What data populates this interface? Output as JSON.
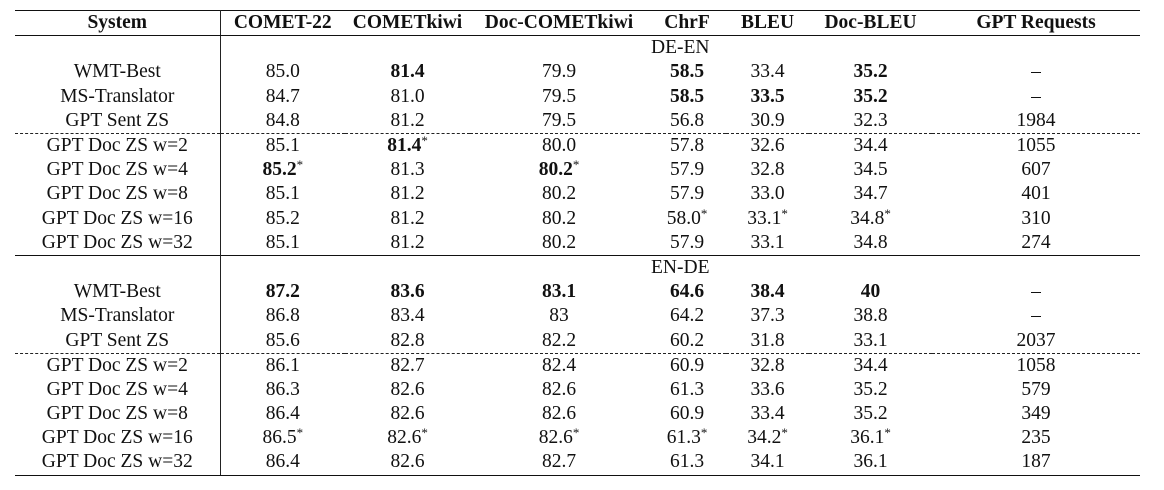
{
  "columns": [
    "System",
    "COMET-22",
    "COMETkiwi",
    "Doc-COMETkiwi",
    "ChrF",
    "BLEU",
    "Doc-BLEU",
    "GPT Requests"
  ],
  "sections": [
    {
      "label": "DE-EN",
      "rows": [
        {
          "system": "WMT-Best",
          "cells": [
            "85.0",
            "81.4",
            "79.9",
            "58.5",
            "33.4",
            "35.2",
            "–"
          ],
          "bold": [
            false,
            true,
            false,
            true,
            false,
            true,
            false
          ],
          "star": [
            false,
            false,
            false,
            false,
            false,
            false,
            false
          ],
          "dashed": false
        },
        {
          "system": "MS-Translator",
          "cells": [
            "84.7",
            "81.0",
            "79.5",
            "58.5",
            "33.5",
            "35.2",
            "–"
          ],
          "bold": [
            false,
            false,
            false,
            true,
            true,
            true,
            false
          ],
          "star": [
            false,
            false,
            false,
            false,
            false,
            false,
            false
          ],
          "dashed": false
        },
        {
          "system": "GPT Sent ZS",
          "cells": [
            "84.8",
            "81.2",
            "79.5",
            "56.8",
            "30.9",
            "32.3",
            "1984"
          ],
          "bold": [
            false,
            false,
            false,
            false,
            false,
            false,
            false
          ],
          "star": [
            false,
            false,
            false,
            false,
            false,
            false,
            false
          ],
          "dashed": false
        },
        {
          "system": "GPT Doc ZS w=2",
          "cells": [
            "85.1",
            "81.4",
            "80.0",
            "57.8",
            "32.6",
            "34.4",
            "1055"
          ],
          "bold": [
            false,
            true,
            false,
            false,
            false,
            false,
            false
          ],
          "star": [
            false,
            true,
            false,
            false,
            false,
            false,
            false
          ],
          "dashed": true
        },
        {
          "system": "GPT Doc ZS w=4",
          "cells": [
            "85.2",
            "81.3",
            "80.2",
            "57.9",
            "32.8",
            "34.5",
            "607"
          ],
          "bold": [
            true,
            false,
            true,
            false,
            false,
            false,
            false
          ],
          "star": [
            true,
            false,
            true,
            false,
            false,
            false,
            false
          ],
          "dashed": false
        },
        {
          "system": "GPT Doc ZS w=8",
          "cells": [
            "85.1",
            "81.2",
            "80.2",
            "57.9",
            "33.0",
            "34.7",
            "401"
          ],
          "bold": [
            false,
            false,
            false,
            false,
            false,
            false,
            false
          ],
          "star": [
            false,
            false,
            false,
            false,
            false,
            false,
            false
          ],
          "dashed": false
        },
        {
          "system": "GPT Doc ZS w=16",
          "cells": [
            "85.2",
            "81.2",
            "80.2",
            "58.0",
            "33.1",
            "34.8",
            "310"
          ],
          "bold": [
            false,
            false,
            false,
            false,
            false,
            false,
            false
          ],
          "star": [
            false,
            false,
            false,
            true,
            true,
            true,
            false
          ],
          "dashed": false
        },
        {
          "system": "GPT Doc ZS w=32",
          "cells": [
            "85.1",
            "81.2",
            "80.2",
            "57.9",
            "33.1",
            "34.8",
            "274"
          ],
          "bold": [
            false,
            false,
            false,
            false,
            false,
            false,
            false
          ],
          "star": [
            false,
            false,
            false,
            false,
            false,
            false,
            false
          ],
          "dashed": false
        }
      ]
    },
    {
      "label": "EN-DE",
      "rows": [
        {
          "system": "WMT-Best",
          "cells": [
            "87.2",
            "83.6",
            "83.1",
            "64.6",
            "38.4",
            "40",
            "–"
          ],
          "bold": [
            true,
            true,
            true,
            true,
            true,
            true,
            false
          ],
          "star": [
            false,
            false,
            false,
            false,
            false,
            false,
            false
          ],
          "dashed": false
        },
        {
          "system": "MS-Translator",
          "cells": [
            "86.8",
            "83.4",
            "83",
            "64.2",
            "37.3",
            "38.8",
            "–"
          ],
          "bold": [
            false,
            false,
            false,
            false,
            false,
            false,
            false
          ],
          "star": [
            false,
            false,
            false,
            false,
            false,
            false,
            false
          ],
          "dashed": false
        },
        {
          "system": "GPT Sent ZS",
          "cells": [
            "85.6",
            "82.8",
            "82.2",
            "60.2",
            "31.8",
            "33.1",
            "2037"
          ],
          "bold": [
            false,
            false,
            false,
            false,
            false,
            false,
            false
          ],
          "star": [
            false,
            false,
            false,
            false,
            false,
            false,
            false
          ],
          "dashed": false
        },
        {
          "system": "GPT Doc ZS w=2",
          "cells": [
            "86.1",
            "82.7",
            "82.4",
            "60.9",
            "32.8",
            "34.4",
            "1058"
          ],
          "bold": [
            false,
            false,
            false,
            false,
            false,
            false,
            false
          ],
          "star": [
            false,
            false,
            false,
            false,
            false,
            false,
            false
          ],
          "dashed": true
        },
        {
          "system": "GPT Doc ZS w=4",
          "cells": [
            "86.3",
            "82.6",
            "82.6",
            "61.3",
            "33.6",
            "35.2",
            "579"
          ],
          "bold": [
            false,
            false,
            false,
            false,
            false,
            false,
            false
          ],
          "star": [
            false,
            false,
            false,
            false,
            false,
            false,
            false
          ],
          "dashed": false
        },
        {
          "system": "GPT Doc ZS w=8",
          "cells": [
            "86.4",
            "82.6",
            "82.6",
            "60.9",
            "33.4",
            "35.2",
            "349"
          ],
          "bold": [
            false,
            false,
            false,
            false,
            false,
            false,
            false
          ],
          "star": [
            false,
            false,
            false,
            false,
            false,
            false,
            false
          ],
          "dashed": false
        },
        {
          "system": "GPT Doc ZS w=16",
          "cells": [
            "86.5",
            "82.6",
            "82.6",
            "61.3",
            "34.2",
            "36.1",
            "235"
          ],
          "bold": [
            false,
            false,
            false,
            false,
            false,
            false,
            false
          ],
          "star": [
            true,
            true,
            true,
            true,
            true,
            true,
            false
          ],
          "dashed": false
        },
        {
          "system": "GPT Doc ZS w=32",
          "cells": [
            "86.4",
            "82.6",
            "82.7",
            "61.3",
            "34.1",
            "36.1",
            "187"
          ],
          "bold": [
            false,
            false,
            false,
            false,
            false,
            false,
            false
          ],
          "star": [
            false,
            false,
            false,
            false,
            false,
            false,
            false
          ],
          "dashed": false
        }
      ]
    }
  ],
  "star_symbol": "*"
}
